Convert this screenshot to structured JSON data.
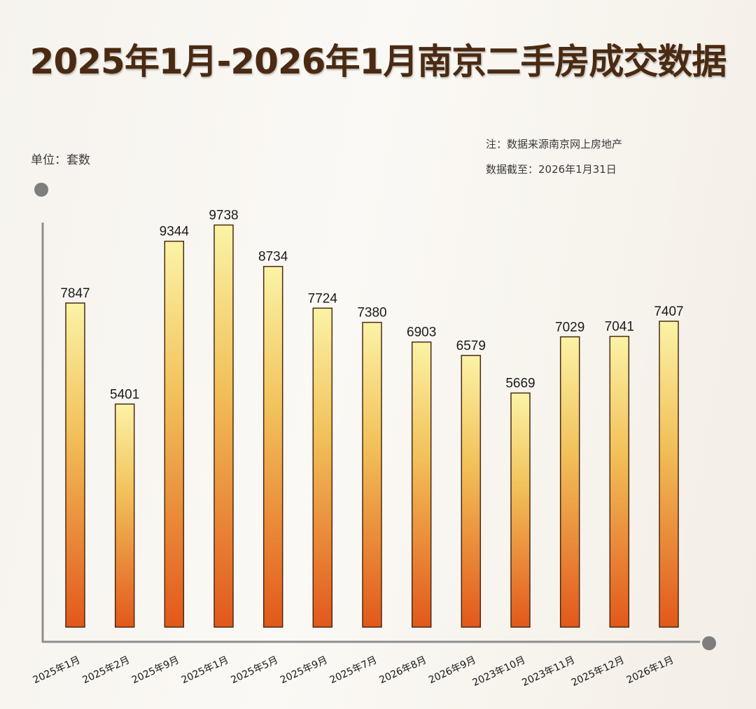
{
  "chart_data": {
    "type": "bar",
    "title": "2025年1月-2026年1月南京二手房成交数据",
    "unit_label": "单位：套数",
    "note": "注：数据来源南京网上房地产",
    "cutoff": "数据截至：2026年1月31日",
    "categories": [
      "2025年1月",
      "2025年2月",
      "2025年9月",
      "2025年1月",
      "2025年5月",
      "2025年9月",
      "2025年7月",
      "2026年8月",
      "2026年9月",
      "2023年10月",
      "2023年11月",
      "2025年12月",
      "2026年1月"
    ],
    "values": [
      7847,
      5401,
      9344,
      9738,
      8734,
      7724,
      7380,
      6903,
      6579,
      5669,
      7029,
      7041,
      7407
    ],
    "ylim": [
      0,
      10000
    ],
    "xlabel": "",
    "ylabel": "",
    "grid": false,
    "colors": {
      "bar_top": "#fbf3a6",
      "bar_mid": "#f2c15a",
      "bar_bottom": "#e2581b",
      "bar_outline": "#4a2a12",
      "axis": "#8e8e8e",
      "title": "#4a2a12"
    }
  }
}
